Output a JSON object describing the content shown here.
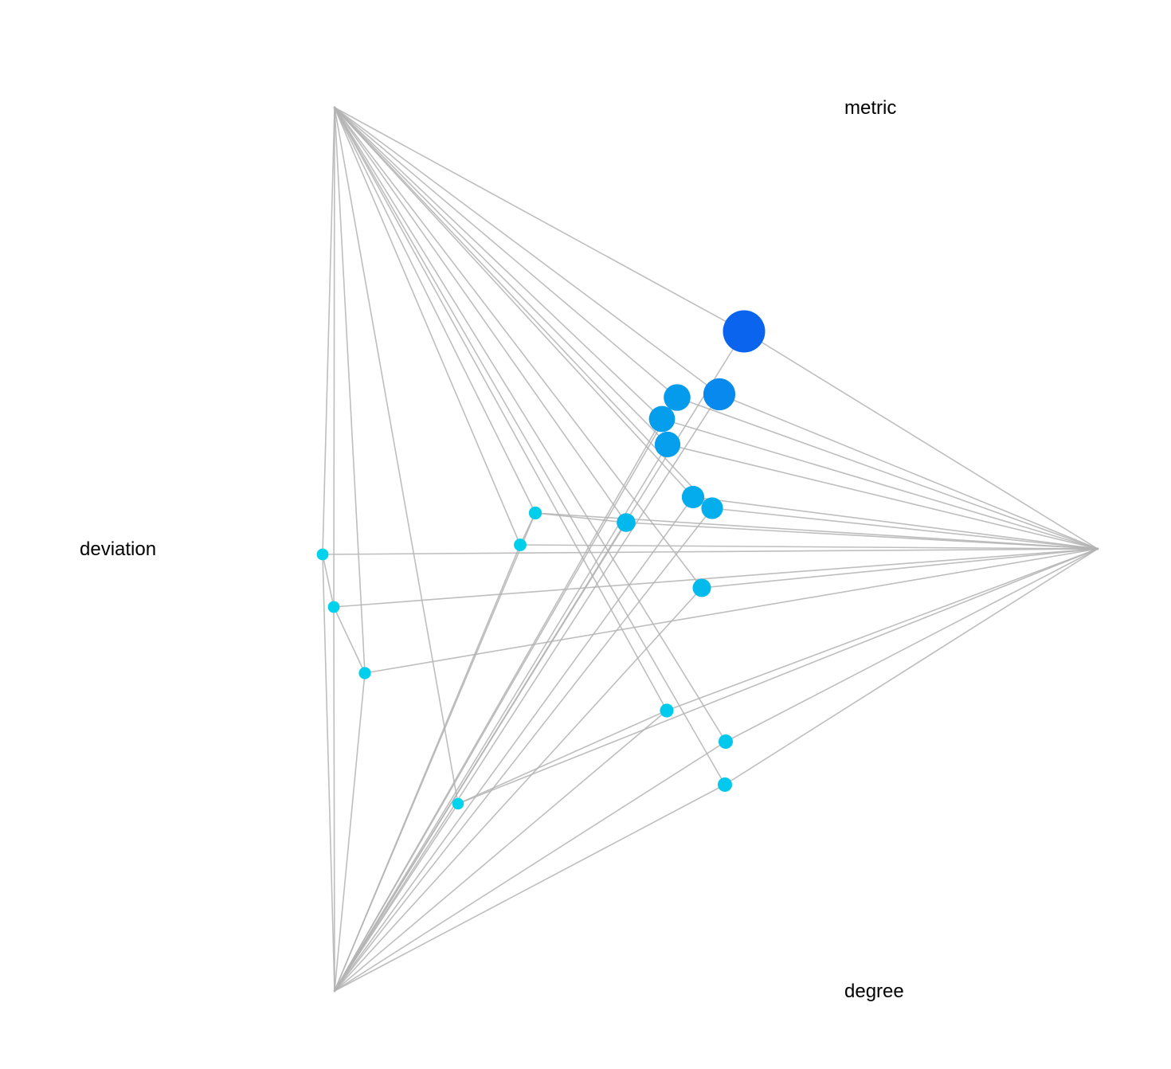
{
  "labels": {
    "metric": "metric",
    "deviation": "deviation",
    "degree": "degree"
  },
  "colors": {
    "background": "#ffffff",
    "edge": "#b3b3b3",
    "node_light": "#00d4ec",
    "node_dark": "#0a64ee"
  },
  "nodes": [
    {
      "id": "n1",
      "size": 1.0
    },
    {
      "id": "n2",
      "size": 0.72
    },
    {
      "id": "n3",
      "size": 0.58
    },
    {
      "id": "n4",
      "size": 0.56
    },
    {
      "id": "n5",
      "size": 0.55
    },
    {
      "id": "n6",
      "size": 0.46
    },
    {
      "id": "n7",
      "size": 0.44
    },
    {
      "id": "n8",
      "size": 0.36
    },
    {
      "id": "n9",
      "size": 0.35
    },
    {
      "id": "n10",
      "size": 0.24
    },
    {
      "id": "n11",
      "size": 0.24
    },
    {
      "id": "n12",
      "size": 0.22
    },
    {
      "id": "n13",
      "size": 0.2
    },
    {
      "id": "n14",
      "size": 0.19
    },
    {
      "id": "n15",
      "size": 0.18
    },
    {
      "id": "n16",
      "size": 0.17
    },
    {
      "id": "n17",
      "size": 0.17
    },
    {
      "id": "n18",
      "size": 0.16
    }
  ]
}
